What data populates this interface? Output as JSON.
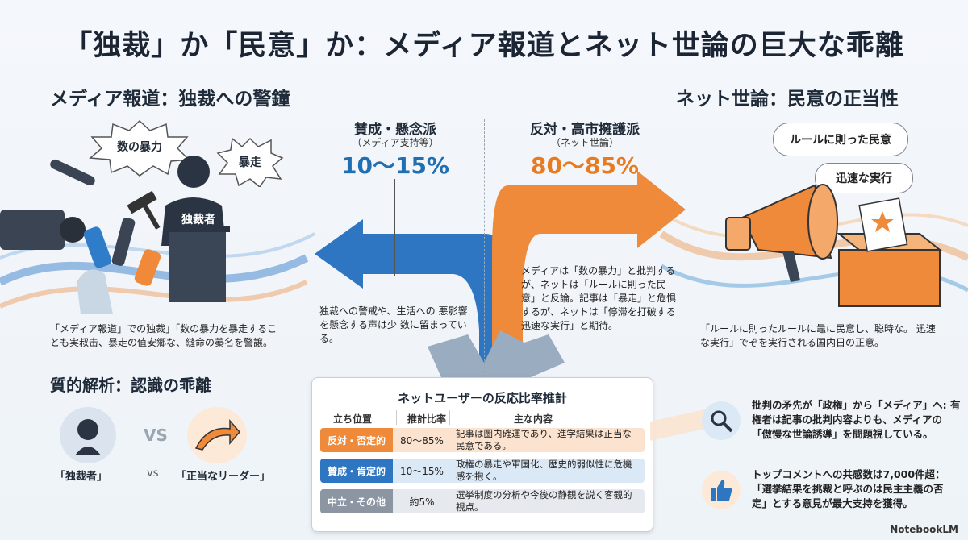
{
  "title": "「独裁」か「民意」か：メディア報道とネット世論の巨大な乖離",
  "left": {
    "heading": "メディア報道：独裁への警鐘",
    "bubble1": "数の暴力",
    "bubble2": "暴走",
    "podium": "独裁者",
    "body": "「メディア報道」での独裁」「数の暴力を暴走するこ とも実叔击、暴走の值安郷な、縫命の蓁名を警譲。"
  },
  "right": {
    "heading": "ネット世論：民意の正当性",
    "bubble1": "ルールに則った民意",
    "bubble2": "迅速な実行",
    "body": "「ルールに則ったルールに鼂に民意し、聪時な。 迅速な実行」でぞを実行される国内日の正意。"
  },
  "center": {
    "left_group": "賛成・懸念派",
    "left_sub": "（メディア支持等）",
    "left_pct": "10〜15%",
    "left_note": "独裁への警戒や、生活への 悪影響を懸念する声は少 数に留まっている。",
    "right_group": "反対・高市擁護派",
    "right_sub": "（ネット世論）",
    "right_pct": "80〜85%",
    "right_note": "メディアは「数の暴力」と批判する が、ネットは「ルールに則った民 意」と反論。記事は「暴走」と危惧 するが、ネットは「停滞を打破する 迅速な実行」と期待。"
  },
  "qual": {
    "heading": "質的解析：認識の乖離",
    "vs_big": "VS",
    "vs_small": "vs",
    "label_left": "「独裁者」",
    "label_right": "「正当なリーダー」"
  },
  "table": {
    "title": "ネットユーザーの反応比率推計",
    "headers": [
      "立ち位置",
      "推計比率",
      "主な内容"
    ],
    "rows": [
      {
        "label": "反対・否定的",
        "ratio": "80〜85%",
        "desc": "記事は圖内確運であり、進学結果は正当な 民意である。",
        "color": "#ee8a3a",
        "bg": "#fbe3cf"
      },
      {
        "label": "賛成・肯定的",
        "ratio": "10〜15%",
        "desc": "政権の暴走や軍国化、歴史的弱似性に危機 感を抱く。",
        "color": "#2f76c2",
        "bg": "#dbe8f6"
      },
      {
        "label": "中立・その他",
        "ratio": "約5%",
        "desc": "選挙制度の分析や今後の静観を説く客観的 視点。",
        "color": "#8c96a3",
        "bg": "#e6e9ed"
      }
    ]
  },
  "callouts": {
    "c1": "批判の矛先が「政権」から「メディア」へ: 有権者は記事の批判内容よりも、メディアの 「傲慢な世論誘導」を問題視している。",
    "c2": "トップコメントへの共感数は7,000件超： 「選挙結果を挑裁と呼ぶのは民主主義の否 定」とする意見が最大支持を獲得。"
  },
  "logo": "NotebookLM"
}
